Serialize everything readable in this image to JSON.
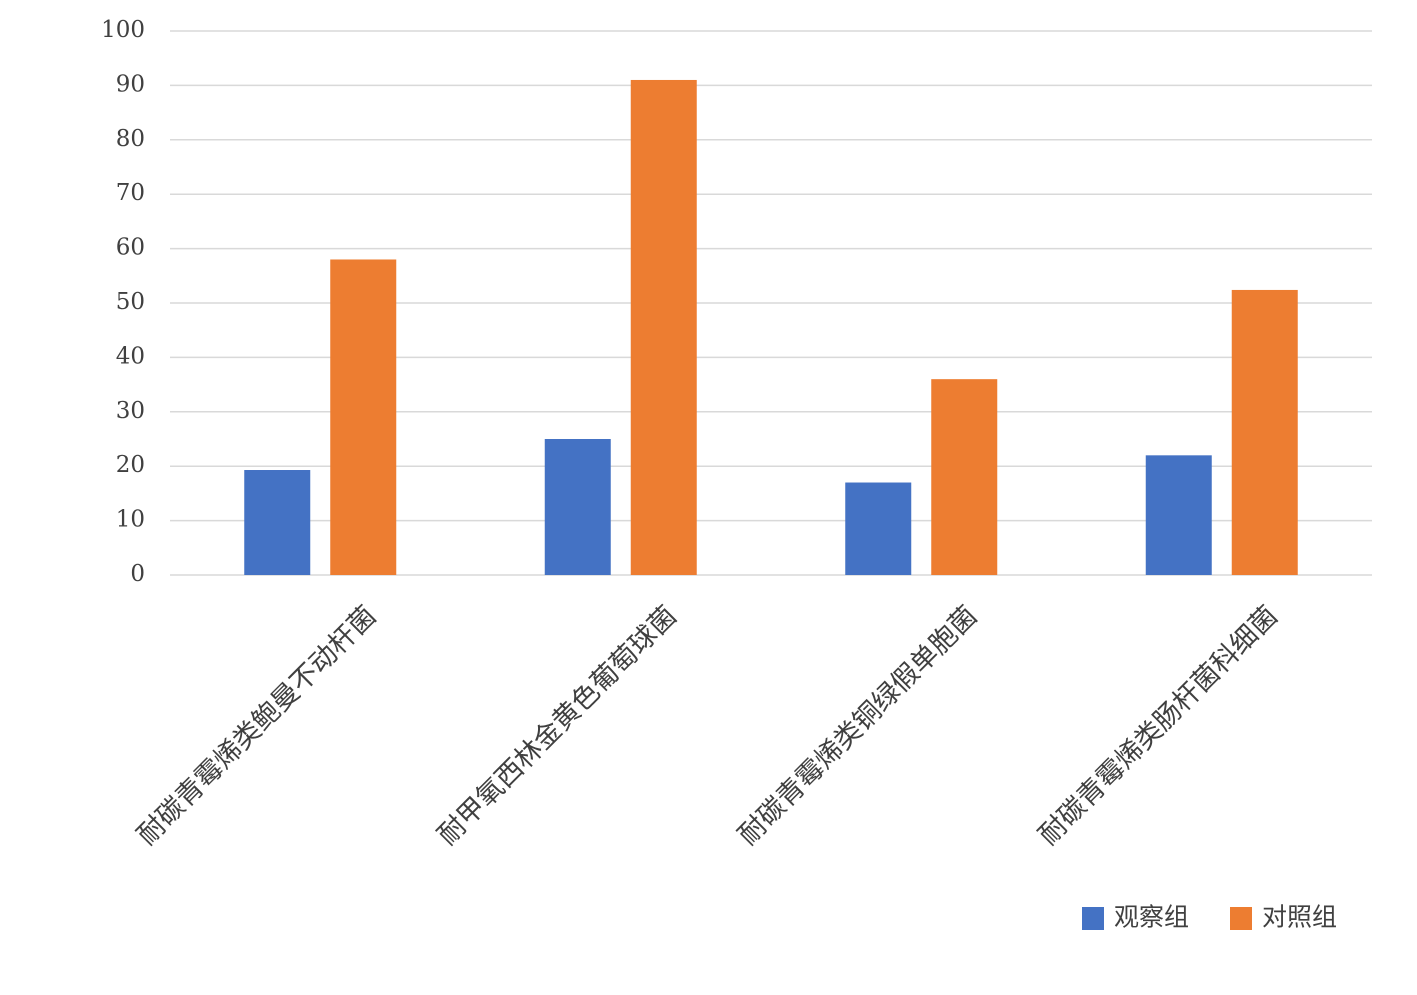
{
  "chart_data": {
    "type": "bar",
    "categories": [
      "耐碳青霉烯类鲍曼不动杆菌",
      "耐甲氧西林金黄色葡萄球菌",
      "耐碳青霉烯类铜绿假单胞菌",
      "耐碳青霉烯类肠杆菌科细菌"
    ],
    "series": [
      {
        "name": "观察组",
        "color": "#4472c4",
        "values": [
          19.3,
          25,
          17,
          22
        ]
      },
      {
        "name": "对照组",
        "color": "#ed7d31",
        "values": [
          58,
          91,
          36,
          52.4
        ]
      }
    ],
    "ylim": [
      0,
      100
    ],
    "yticks": [
      0,
      10,
      20,
      30,
      40,
      50,
      60,
      70,
      80,
      90,
      100
    ],
    "grid": true,
    "legend": "bottom-right"
  }
}
